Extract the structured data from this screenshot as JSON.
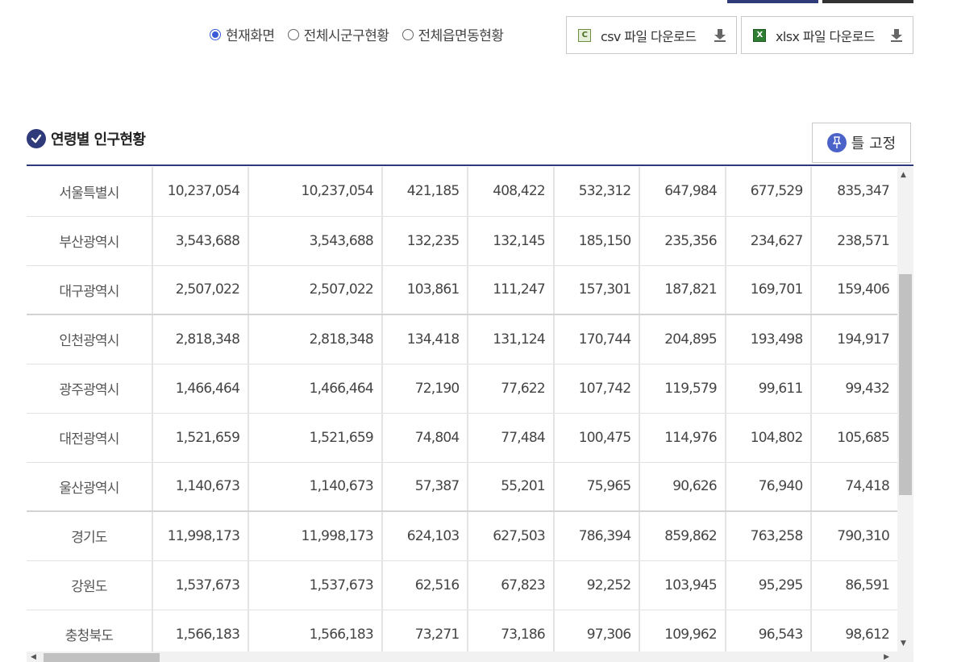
{
  "view_options": {
    "items": [
      {
        "label": "현재화면",
        "checked": true
      },
      {
        "label": "전체시군구현황",
        "checked": false
      },
      {
        "label": "전체읍면동현황",
        "checked": false
      }
    ]
  },
  "downloads": {
    "csv_label": "csv 파일 다운로드",
    "csv_icon_text": "C",
    "xlsx_label": "xlsx 파일 다운로드",
    "xlsx_icon_text": "X"
  },
  "section": {
    "title": "연령별 인구현황",
    "pin_label": "틀 고정"
  },
  "table": {
    "rows": [
      {
        "region": "서울특별시",
        "values": [
          "10,237,054",
          "10,237,054",
          "421,185",
          "408,422",
          "532,312",
          "647,984",
          "677,529",
          "835,347"
        ]
      },
      {
        "region": "부산광역시",
        "values": [
          "3,543,688",
          "3,543,688",
          "132,235",
          "132,145",
          "185,150",
          "235,356",
          "234,627",
          "238,571"
        ]
      },
      {
        "region": "대구광역시",
        "values": [
          "2,507,022",
          "2,507,022",
          "103,861",
          "111,247",
          "157,301",
          "187,821",
          "169,701",
          "159,406"
        ]
      },
      {
        "region": "인천광역시",
        "values": [
          "2,818,348",
          "2,818,348",
          "134,418",
          "131,124",
          "170,744",
          "204,895",
          "193,498",
          "194,917"
        ]
      },
      {
        "region": "광주광역시",
        "values": [
          "1,466,464",
          "1,466,464",
          "72,190",
          "77,622",
          "107,742",
          "119,579",
          "99,611",
          "99,432"
        ]
      },
      {
        "region": "대전광역시",
        "values": [
          "1,521,659",
          "1,521,659",
          "74,804",
          "77,484",
          "100,475",
          "114,976",
          "104,802",
          "105,685"
        ]
      },
      {
        "region": "울산광역시",
        "values": [
          "1,140,673",
          "1,140,673",
          "57,387",
          "55,201",
          "75,965",
          "90,626",
          "76,940",
          "74,418"
        ]
      },
      {
        "region": "경기도",
        "values": [
          "11,998,173",
          "11,998,173",
          "624,103",
          "627,503",
          "786,394",
          "859,862",
          "763,258",
          "790,310"
        ]
      },
      {
        "region": "강원도",
        "values": [
          "1,537,673",
          "1,537,673",
          "62,516",
          "67,823",
          "92,252",
          "103,945",
          "95,295",
          "86,591"
        ]
      },
      {
        "region": "충청북도",
        "values": [
          "1,566,183",
          "1,566,183",
          "73,271",
          "73,186",
          "97,306",
          "109,962",
          "96,543",
          "98,612"
        ]
      }
    ]
  },
  "colors": {
    "accent": "#2f3a7a",
    "radio_checked": "#3b5bd6"
  }
}
